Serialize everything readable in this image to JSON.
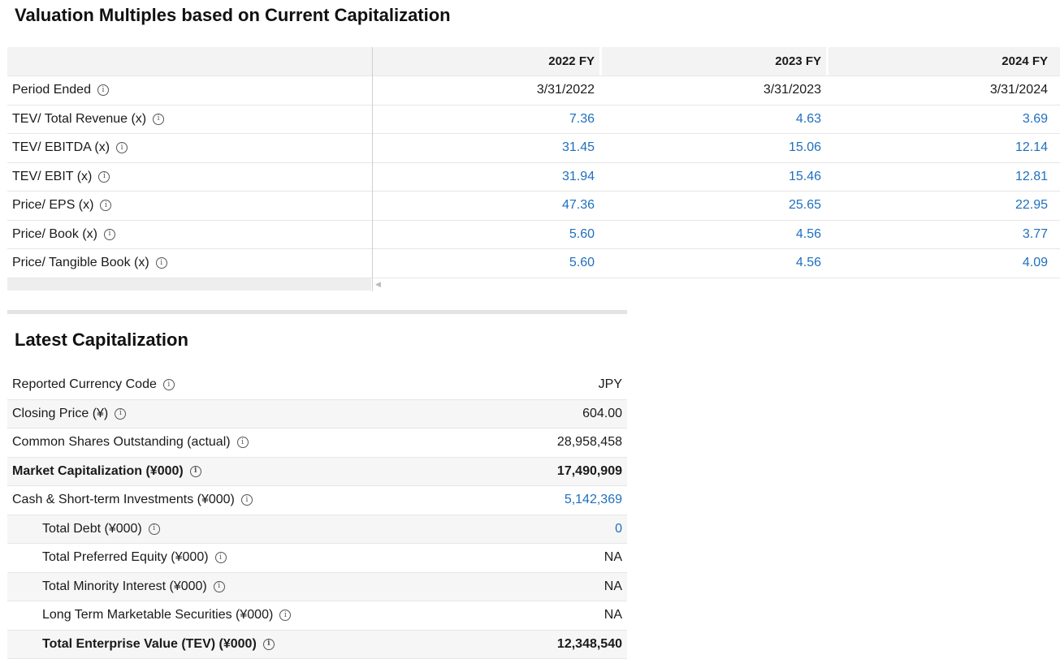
{
  "valuation": {
    "title": "Valuation Multiples based on Current Capitalization",
    "columns": [
      "2022 FY",
      "2023 FY",
      "2024 FY"
    ],
    "rows": [
      {
        "label": "Period Ended",
        "values": [
          "3/31/2022",
          "3/31/2023",
          "3/31/2024"
        ],
        "link": false
      },
      {
        "label": "TEV/ Total Revenue (x)",
        "values": [
          "7.36",
          "4.63",
          "3.69"
        ],
        "link": true
      },
      {
        "label": "TEV/ EBITDA (x)",
        "values": [
          "31.45",
          "15.06",
          "12.14"
        ],
        "link": true
      },
      {
        "label": "TEV/ EBIT (x)",
        "values": [
          "31.94",
          "15.46",
          "12.81"
        ],
        "link": true
      },
      {
        "label": "Price/ EPS (x)",
        "values": [
          "47.36",
          "25.65",
          "22.95"
        ],
        "link": true
      },
      {
        "label": "Price/ Book (x)",
        "values": [
          "5.60",
          "4.56",
          "3.77"
        ],
        "link": true
      },
      {
        "label": "Price/ Tangible Book (x)",
        "values": [
          "5.60",
          "4.56",
          "4.09"
        ],
        "link": true
      }
    ]
  },
  "capitalization": {
    "title": "Latest Capitalization",
    "rows": [
      {
        "label": "Reported Currency Code",
        "value": "JPY",
        "bold": false,
        "indent": false,
        "link": false
      },
      {
        "label": "Closing Price (¥)",
        "value": "604.00",
        "bold": false,
        "indent": false,
        "link": false
      },
      {
        "label": "Common Shares Outstanding (actual)",
        "value": "28,958,458",
        "bold": false,
        "indent": false,
        "link": false
      },
      {
        "label": "Market Capitalization (¥000)",
        "value": "17,490,909",
        "bold": true,
        "indent": false,
        "link": false
      },
      {
        "label": "Cash & Short-term Investments (¥000)",
        "value": "5,142,369",
        "bold": false,
        "indent": false,
        "link": true
      },
      {
        "label": "Total Debt (¥000)",
        "value": "0",
        "bold": false,
        "indent": true,
        "link": true
      },
      {
        "label": "Total Preferred Equity (¥000)",
        "value": "NA",
        "bold": false,
        "indent": true,
        "link": false
      },
      {
        "label": "Total Minority Interest (¥000)",
        "value": "NA",
        "bold": false,
        "indent": true,
        "link": false
      },
      {
        "label": "Long Term Marketable Securities (¥000)",
        "value": "NA",
        "bold": false,
        "indent": true,
        "link": false
      },
      {
        "label": "Total Enterprise Value (TEV) (¥000)",
        "value": "12,348,540",
        "bold": true,
        "indent": true,
        "link": false
      }
    ]
  },
  "icons": {
    "info": "info-icon",
    "scroll_left": "scroll-left-arrow-icon"
  },
  "colors": {
    "link": "#1f6fbf",
    "header_bg": "#f3f3f3"
  }
}
